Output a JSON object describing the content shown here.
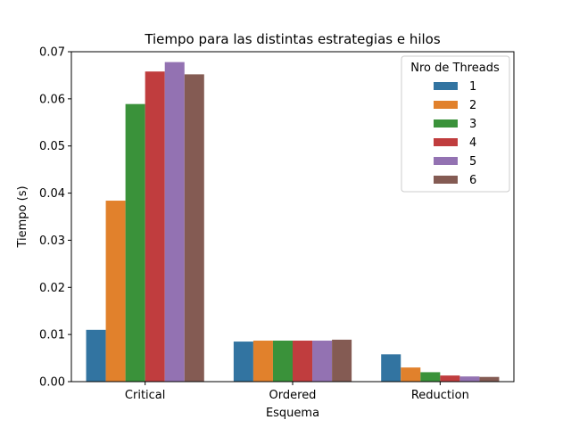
{
  "chart_data": {
    "type": "bar",
    "title": "Tiempo para las distintas estrategias e hilos",
    "xlabel": "Esquema",
    "ylabel": "Tiempo (s)",
    "categories": [
      "Critical",
      "Ordered",
      "Reduction"
    ],
    "ylim": [
      0,
      0.07
    ],
    "yticks": [
      0.0,
      0.01,
      0.02,
      0.03,
      0.04,
      0.05,
      0.06,
      0.07
    ],
    "ytick_labels": [
      "0.00",
      "0.01",
      "0.02",
      "0.03",
      "0.04",
      "0.05",
      "0.06",
      "0.07"
    ],
    "grid": false,
    "legend": {
      "title": "Nro de Threads",
      "placement": "top-right"
    },
    "series": [
      {
        "name": "1",
        "color": "#3274a1",
        "values": [
          0.011,
          0.0085,
          0.0058
        ]
      },
      {
        "name": "2",
        "color": "#e1812c",
        "values": [
          0.0384,
          0.0087,
          0.003
        ]
      },
      {
        "name": "3",
        "color": "#3a923a",
        "values": [
          0.0589,
          0.0087,
          0.002
        ]
      },
      {
        "name": "4",
        "color": "#c03d3e",
        "values": [
          0.0658,
          0.0087,
          0.0013
        ]
      },
      {
        "name": "5",
        "color": "#9372b2",
        "values": [
          0.0678,
          0.0087,
          0.0011
        ]
      },
      {
        "name": "6",
        "color": "#845b53",
        "values": [
          0.0652,
          0.0089,
          0.001
        ]
      }
    ]
  }
}
